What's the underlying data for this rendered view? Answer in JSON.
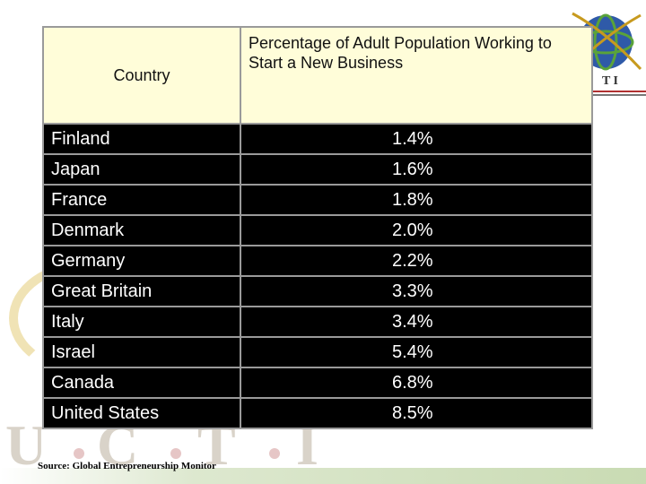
{
  "table": {
    "headers": {
      "country": "Country",
      "percentage": "Percentage of Adult Population Working to Start a New Business"
    },
    "rows": [
      {
        "country": "Finland",
        "value": "1.4%"
      },
      {
        "country": "Japan",
        "value": "1.6%"
      },
      {
        "country": "France",
        "value": "1.8%"
      },
      {
        "country": "Denmark",
        "value": "2.0%"
      },
      {
        "country": "Germany",
        "value": "2.2%"
      },
      {
        "country": "Great Britain",
        "value": "3.3%"
      },
      {
        "country": "Italy",
        "value": "3.4%"
      },
      {
        "country": "Israel",
        "value": "5.4%"
      },
      {
        "country": "Canada",
        "value": "6.8%"
      },
      {
        "country": "United States",
        "value": "8.5%"
      }
    ]
  },
  "source": "Source: Global Entrepreneurship Monitor",
  "watermark": {
    "letters": [
      "U",
      "C",
      "T",
      "I"
    ]
  },
  "logo": {
    "text": "T I",
    "icon": "globe-orbit-icon"
  },
  "colors": {
    "header_bg": "#fffdd9",
    "row_bg": "#000000",
    "row_text": "#ffffff",
    "border": "#9a9a9a"
  }
}
